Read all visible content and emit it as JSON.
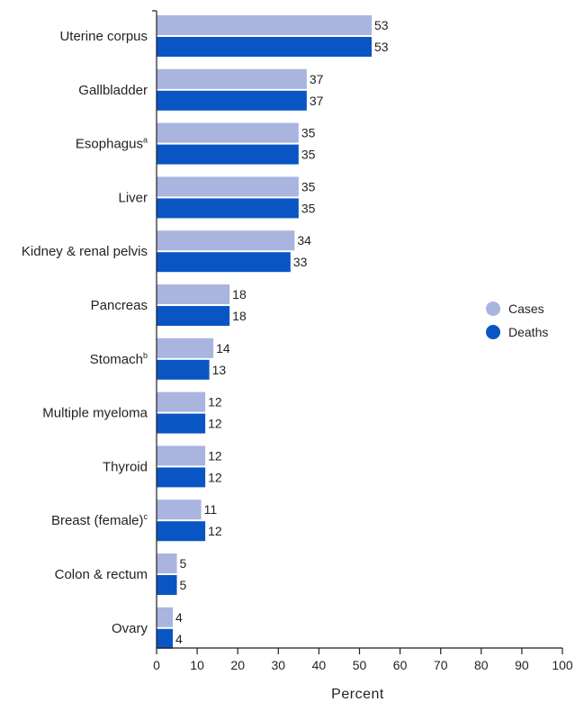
{
  "chart_data": {
    "type": "bar",
    "orientation": "horizontal",
    "categories": [
      {
        "label": "Uterine corpus",
        "sup": ""
      },
      {
        "label": "Gallbladder",
        "sup": ""
      },
      {
        "label": "Esophagus",
        "sup": "a"
      },
      {
        "label": "Liver",
        "sup": ""
      },
      {
        "label": "Kidney & renal pelvis",
        "sup": ""
      },
      {
        "label": "Pancreas",
        "sup": ""
      },
      {
        "label": "Stomach",
        "sup": "b"
      },
      {
        "label": "Multiple myeloma",
        "sup": ""
      },
      {
        "label": "Thyroid",
        "sup": ""
      },
      {
        "label": "Breast (female)",
        "sup": "c"
      },
      {
        "label": "Colon & rectum",
        "sup": ""
      },
      {
        "label": "Ovary",
        "sup": ""
      }
    ],
    "series": [
      {
        "name": "Cases",
        "color": "#a9b4df",
        "values": [
          53,
          37,
          35,
          35,
          34,
          18,
          14,
          12,
          12,
          11,
          5,
          4
        ]
      },
      {
        "name": "Deaths",
        "color": "#0a55c4",
        "values": [
          53,
          37,
          35,
          35,
          33,
          18,
          13,
          12,
          12,
          12,
          5,
          4
        ]
      }
    ],
    "xlabel": "Percent",
    "ylabel": "",
    "title": "",
    "xlim": [
      0,
      100
    ],
    "xticks": [
      0,
      10,
      20,
      30,
      40,
      50,
      60,
      70,
      80,
      90,
      100
    ],
    "data_labels": true,
    "grid": false,
    "legend_position": "right"
  }
}
